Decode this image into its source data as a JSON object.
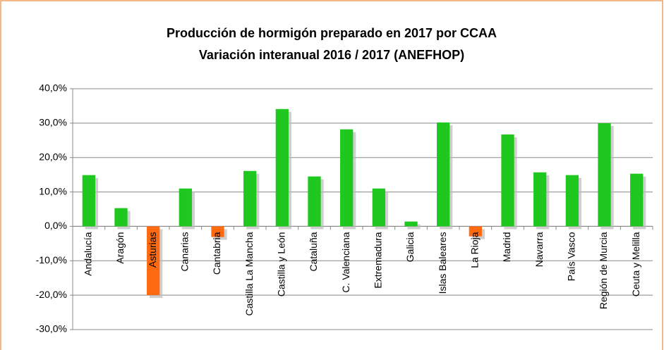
{
  "chart_data": {
    "type": "bar",
    "title": "Producción de hormigón preparado en 2017 por CCAA",
    "subtitle": "Variación interanual 2016 / 2017 (ANEFHOP)",
    "categories": [
      "Andalucía",
      "Aragón",
      "Asturias",
      "Canarias",
      "Cantabria",
      "Castilla La Mancha",
      "Castilla y León",
      "Cataluña",
      "C. Valenciana",
      "Extremadura",
      "Galicia",
      "Islas Baleares",
      "La Rioja",
      "Madrid",
      "Navarra",
      "País Vasco",
      "Región de Murcia",
      "Ceuta y Melilla"
    ],
    "values": [
      14.9,
      5.3,
      -20,
      11,
      -3.1,
      16.1,
      34.1,
      14.5,
      28.2,
      11,
      1.4,
      30.2,
      -2.9,
      26.7,
      15.7,
      14.9,
      30,
      15.3
    ],
    "colors": [
      "#1ec81e",
      "#1ec81e",
      "#ff6a10",
      "#1ec81e",
      "#ff6a10",
      "#1ec81e",
      "#1ec81e",
      "#1ec81e",
      "#1ec81e",
      "#1ec81e",
      "#1ec81e",
      "#1ec81e",
      "#ff6a10",
      "#1ec81e",
      "#1ec81e",
      "#1ec81e",
      "#1ec81e",
      "#1ec81e"
    ],
    "ylim": [
      -30,
      40
    ],
    "yticks": [
      {
        "value": -30,
        "label": "-30,0%"
      },
      {
        "value": -20,
        "label": "-20,0%"
      },
      {
        "value": -10,
        "label": "-10,0%"
      },
      {
        "value": 0,
        "label": "0,0%"
      },
      {
        "value": 10,
        "label": "10,0%"
      },
      {
        "value": 20,
        "label": "20,0%"
      },
      {
        "value": 30,
        "label": "30,0%"
      },
      {
        "value": 40,
        "label": "40,0%"
      }
    ],
    "grid": true
  }
}
